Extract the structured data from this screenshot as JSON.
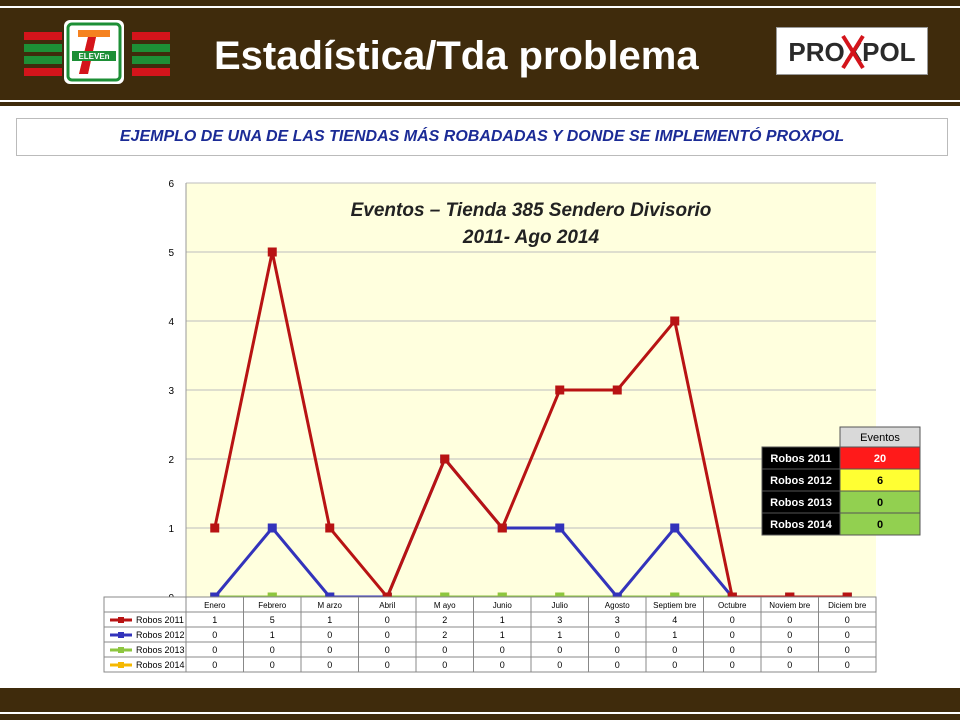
{
  "header": {
    "title": "Estadística/Tda problema",
    "subtitle": "EJEMPLO DE UNA  DE LAS TIENDAS MÁS ROBADADAS Y  DONDE SE IMPLEMENTÓ PROXPOL",
    "logo_left_text": "ELEVEn",
    "logo_right_text": "PROXPOL"
  },
  "chart_data": {
    "type": "line",
    "title": "Eventos – Tienda 385 Sendero Divisorio",
    "subtitle": "2011- Ago 2014",
    "categories": [
      "Enero",
      "Febrero",
      "Marzo",
      "Abril",
      "Mayo",
      "Junio",
      "Julio",
      "Agosto",
      "Septiembre",
      "Octubre",
      "Noviembre",
      "Diciembre"
    ],
    "category_labels": [
      "Enero",
      "Febrero",
      "M arzo",
      "Abril",
      "M ayo",
      "Junio",
      "Julio",
      "Agosto",
      "Septiem bre",
      "Octubre",
      "Noviem bre",
      "Diciem bre"
    ],
    "ylim": [
      0,
      6
    ],
    "yticks": [
      "0",
      "1",
      "2",
      "3",
      "4",
      "5",
      "6"
    ],
    "series": [
      {
        "name": "Robos 2011",
        "color": "#b81313",
        "values": [
          1,
          5,
          1,
          0,
          2,
          1,
          3,
          3,
          4,
          0,
          0,
          0
        ]
      },
      {
        "name": "Robos 2012",
        "color": "#3333bb",
        "values": [
          0,
          1,
          0,
          0,
          2,
          1,
          1,
          0,
          1,
          0,
          0,
          0
        ]
      },
      {
        "name": "Robos 2013",
        "color": "#8dc63f",
        "values": [
          0,
          0,
          0,
          0,
          0,
          0,
          0,
          0,
          0,
          0,
          0,
          0
        ]
      },
      {
        "name": "Robos 2014",
        "color": "#f5b800",
        "values": [
          0,
          0,
          0,
          0,
          0,
          0,
          0,
          0,
          0,
          0,
          0,
          0
        ]
      }
    ],
    "grid": true,
    "data_table": true,
    "summary": {
      "header": "Eventos",
      "rows": [
        {
          "label": "Robos 2011",
          "value": "20",
          "color": "#ff1a1a"
        },
        {
          "label": "Robos 2012",
          "value": "6",
          "color": "#ffff33"
        },
        {
          "label": "Robos 2013",
          "value": "0",
          "color": "#92d050"
        },
        {
          "label": "Robos 2014",
          "value": "0",
          "color": "#92d050"
        }
      ]
    }
  }
}
